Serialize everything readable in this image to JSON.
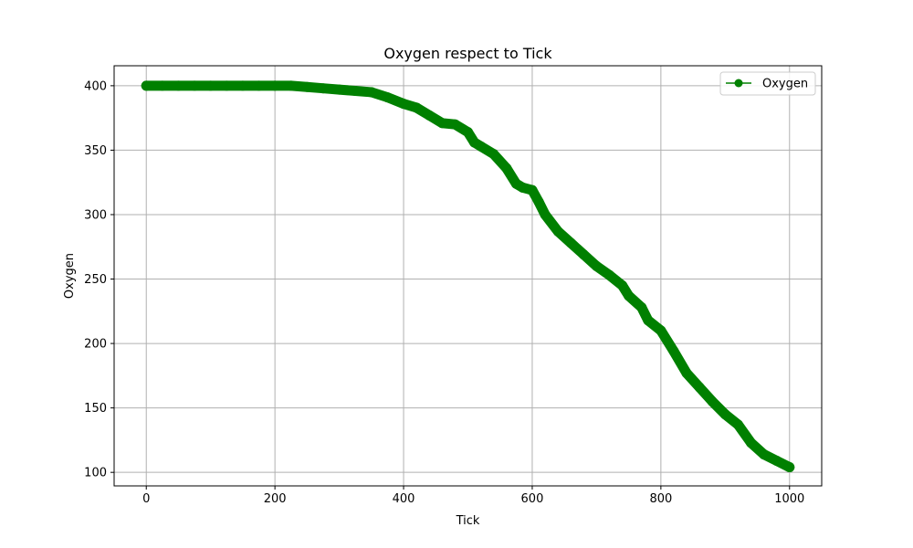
{
  "chart_data": {
    "type": "line",
    "title": "Oxygen respect to Tick",
    "xlabel": "Tick",
    "ylabel": "Oxygen",
    "xlim": [
      -50,
      1050
    ],
    "ylim": [
      89.5,
      415.5
    ],
    "xticks": [
      0,
      200,
      400,
      600,
      800,
      1000
    ],
    "yticks": [
      100,
      150,
      200,
      250,
      300,
      350,
      400
    ],
    "grid": true,
    "legend_position": "top-right",
    "colors": {
      "series": "#008000",
      "grid": "#b0b0b0",
      "axis": "#000000"
    },
    "series": [
      {
        "name": "Oxygen",
        "marker": "circle",
        "x": [
          0,
          25,
          50,
          75,
          100,
          125,
          150,
          175,
          200,
          225,
          250,
          275,
          300,
          325,
          350,
          375,
          400,
          420,
          440,
          460,
          480,
          500,
          510,
          520,
          540,
          560,
          575,
          585,
          600,
          610,
          620,
          640,
          660,
          680,
          700,
          720,
          740,
          750,
          770,
          780,
          800,
          820,
          840,
          860,
          880,
          900,
          920,
          940,
          960,
          980,
          1000
        ],
        "y": [
          400,
          400,
          400,
          400,
          400,
          400,
          400,
          400,
          400,
          400,
          399,
          398,
          397,
          396,
          395,
          391,
          386,
          383,
          377,
          371,
          370,
          364,
          356,
          353,
          347,
          336,
          324,
          321,
          319,
          310,
          300,
          287,
          278,
          269,
          260,
          253,
          245,
          237,
          228,
          218,
          210,
          194,
          177,
          166,
          155,
          145,
          137,
          123,
          114,
          109,
          104
        ]
      }
    ]
  }
}
